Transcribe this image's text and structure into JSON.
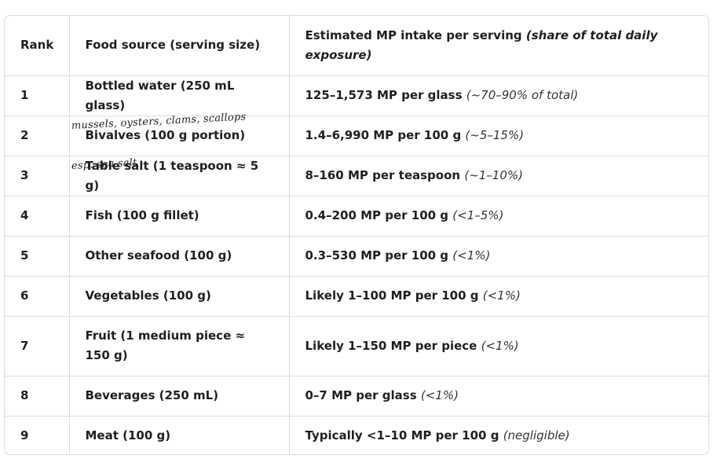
{
  "table": {
    "headers": {
      "rank": "Rank",
      "food": "Food source (serving size)",
      "intake": "Estimated MP intake per serving",
      "intake_share": "(share of total daily exposure)"
    },
    "rows": [
      {
        "rank": "1",
        "food": "Bottled water (250 mL glass)",
        "intake": "125–1,573 MP per glass",
        "share": "(~70–90% of total)",
        "note": ""
      },
      {
        "rank": "2",
        "food": "Bivalves (100 g portion)",
        "intake": "1.4–6,990 MP per 100 g",
        "share": "(~5–15%)",
        "note": "mussels, oysters, clams, scallops"
      },
      {
        "rank": "3",
        "food": "Table salt (1 teaspoon ≈ 5 g)",
        "intake": "8–160 MP per teaspoon",
        "share": "(~1–10%)",
        "note": "esp. sea salt"
      },
      {
        "rank": "4",
        "food": "Fish (100 g fillet)",
        "intake": "0.4–200 MP per 100 g",
        "share": "(<1–5%)",
        "note": ""
      },
      {
        "rank": "5",
        "food": "Other seafood (100 g)",
        "intake": "0.3–530 MP per 100 g",
        "share": "(<1%)",
        "note": ""
      },
      {
        "rank": "6",
        "food": "Vegetables (100 g)",
        "intake": "Likely 1–100 MP per 100 g",
        "share": "(<1%)",
        "note": ""
      },
      {
        "rank": "7",
        "food": "Fruit (1 medium piece ≈ 150 g)",
        "intake": "Likely 1–150 MP per piece",
        "share": "(<1%)",
        "note": ""
      },
      {
        "rank": "8",
        "food": "Beverages (250 mL)",
        "intake": "0–7 MP per glass",
        "share": "(<1%)",
        "note": ""
      },
      {
        "rank": "9",
        "food": "Meat (100 g)",
        "intake": "Typically <1–10 MP per 100 g",
        "share": "(negligible)",
        "note": ""
      }
    ]
  }
}
